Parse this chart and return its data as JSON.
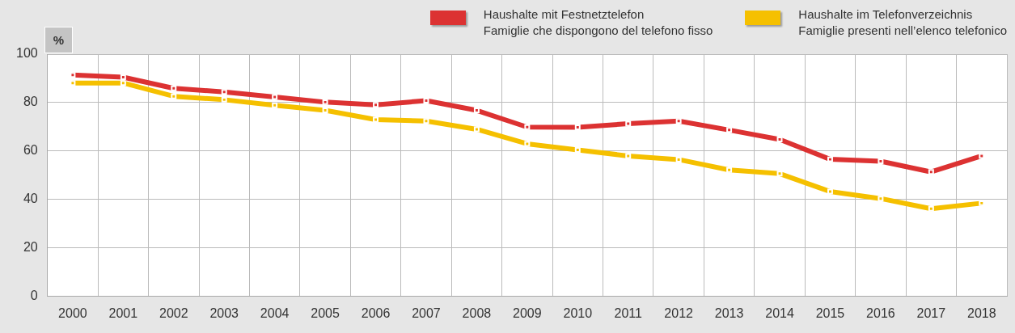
{
  "chart_data": {
    "type": "line",
    "ylabel": "%",
    "categories": [
      "2000",
      "2001",
      "2002",
      "2003",
      "2004",
      "2005",
      "2006",
      "2007",
      "2008",
      "2009",
      "2010",
      "2011",
      "2012",
      "2013",
      "2014",
      "2015",
      "2016",
      "2017",
      "2018"
    ],
    "series": [
      {
        "name": "Haushalte mit Festnetztelefon\nFamiglie che dispongono del telefono fisso",
        "color": "#dc3232",
        "values": [
          91.4,
          90.5,
          85.9,
          84.4,
          82.3,
          80.2,
          79.1,
          80.8,
          76.8,
          69.9,
          69.8,
          71.3,
          72.4,
          68.7,
          64.8,
          56.6,
          55.8,
          51.4,
          58.0
        ]
      },
      {
        "name": "Haushalte im Telefonverzeichnis\nFamiglie presenti nell’elenco telefonico",
        "color": "#f5c000",
        "values": [
          88.1,
          88.1,
          82.6,
          81.2,
          78.9,
          76.8,
          73.0,
          72.4,
          69.0,
          63.0,
          60.5,
          58.0,
          56.5,
          52.2,
          50.7,
          43.3,
          40.4,
          36.2,
          38.5
        ]
      }
    ],
    "ylim": [
      0,
      100
    ],
    "yticks": [
      0,
      20,
      40,
      60,
      80,
      100
    ],
    "grid": true,
    "legend": "top right",
    "marker": "square",
    "line_style": "solid"
  }
}
